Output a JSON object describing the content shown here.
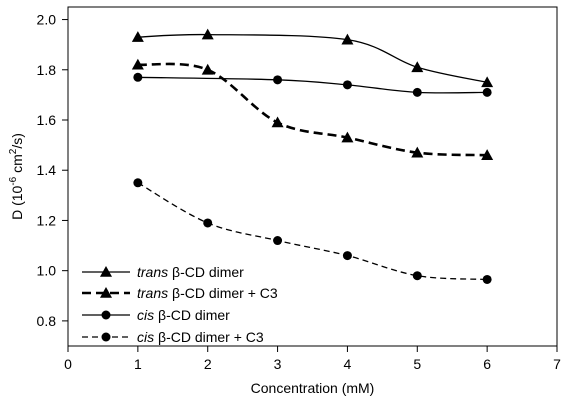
{
  "chart_data": {
    "type": "line",
    "xlabel": "Concentration (mM)",
    "ylabel": {
      "prefix": "D (10",
      "exp1": "-6",
      "mid": " cm",
      "exp2": "2",
      "suffix": "/s)"
    },
    "xlim": [
      0,
      7
    ],
    "ylim": [
      0.7,
      2.05
    ],
    "x_ticks": [
      0,
      1,
      2,
      3,
      4,
      5,
      6,
      7
    ],
    "y_ticks": [
      0.8,
      1.0,
      1.2,
      1.4,
      1.6,
      1.8,
      2.0
    ],
    "x_tick_labels": [
      "0",
      "1",
      "2",
      "3",
      "4",
      "5",
      "6",
      "7"
    ],
    "y_tick_labels": [
      "0.8",
      "1.0",
      "1.2",
      "1.4",
      "1.6",
      "1.8",
      "2.0"
    ],
    "grid": false,
    "legend_position": "bottom-left",
    "series": [
      {
        "label_italic": "trans",
        "label_rest": " β-CD dimer",
        "marker": "triangle",
        "line_style": "solid",
        "x": [
          1,
          2,
          4,
          5,
          6
        ],
        "y": [
          1.93,
          1.94,
          1.92,
          1.81,
          1.75
        ]
      },
      {
        "label_italic": "trans",
        "label_rest": " β-CD dimer + C3",
        "marker": "triangle",
        "line_style": "bold-dashed",
        "x": [
          1,
          2,
          3,
          4,
          5,
          6
        ],
        "y": [
          1.82,
          1.8,
          1.59,
          1.53,
          1.47,
          1.46
        ]
      },
      {
        "label_italic": "cis",
        "label_rest": " β-CD dimer",
        "marker": "circle",
        "line_style": "solid",
        "x": [
          1,
          3,
          4,
          5,
          6
        ],
        "y": [
          1.77,
          1.76,
          1.74,
          1.71,
          1.71
        ]
      },
      {
        "label_italic": "cis",
        "label_rest": " β-CD dimer + C3",
        "marker": "circle",
        "line_style": "dashed",
        "x": [
          1,
          2,
          3,
          4,
          5,
          6
        ],
        "y": [
          1.35,
          1.19,
          1.12,
          1.06,
          0.98,
          0.965
        ]
      }
    ],
    "colors": {
      "line": "#000000",
      "background": "#ffffff"
    }
  }
}
